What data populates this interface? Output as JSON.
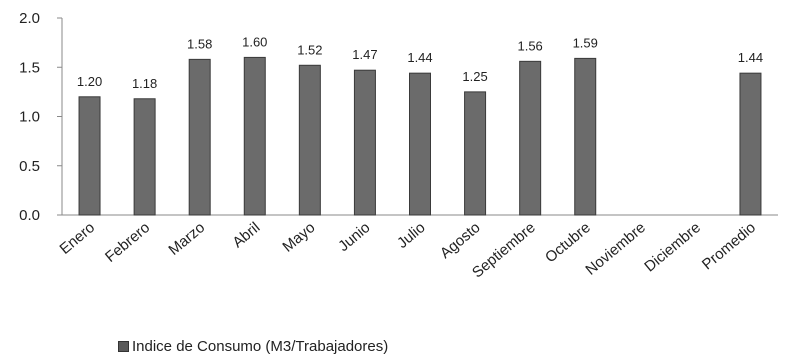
{
  "chart_data": {
    "type": "bar",
    "categories": [
      "Enero",
      "Febrero",
      "Marzo",
      "Abril",
      "Mayo",
      "Junio",
      "Julio",
      "Agosto",
      "Septiembre",
      "Octubre",
      "Noviembre",
      "Diciembre",
      "Promedio"
    ],
    "series": [
      {
        "name": "Indice de Consumo (M3/Trabajadores)",
        "values": [
          1.2,
          1.18,
          1.58,
          1.6,
          1.52,
          1.47,
          1.44,
          1.25,
          1.56,
          1.59,
          null,
          null,
          1.44
        ],
        "color": "#6b6b6b"
      }
    ],
    "data_labels": [
      "1.20",
      "1.18",
      "1.58",
      "1.60",
      "1.52",
      "1.47",
      "1.44",
      "1.25",
      "1.56",
      "1.59",
      "",
      "",
      "1.44"
    ],
    "y_ticks": [
      "0.0",
      "0.5",
      "1.0",
      "1.5",
      "2.0"
    ],
    "ylim": [
      0,
      2.0
    ],
    "title": "",
    "xlabel": "",
    "ylabel": "",
    "grid": false,
    "legend_position": "bottom-left"
  },
  "legend": {
    "label": "Indice de Consumo (M3/Trabajadores)"
  }
}
